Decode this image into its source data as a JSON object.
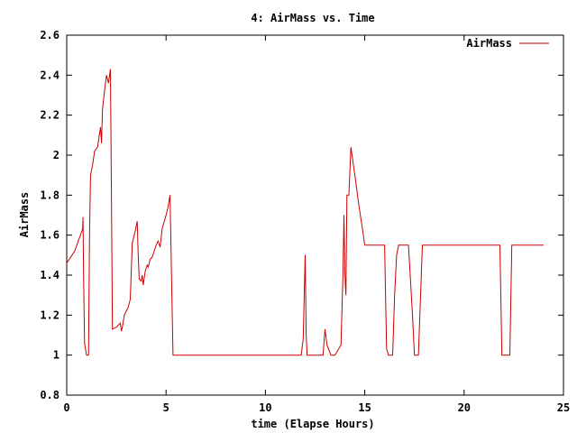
{
  "chart_data": {
    "type": "line",
    "title": "4: AirMass vs. Time",
    "xlabel": "time (Elapse Hours)",
    "ylabel": "AirMass",
    "xlim": [
      0,
      25
    ],
    "ylim": [
      0.8,
      2.6
    ],
    "x_ticks": [
      0,
      5,
      10,
      15,
      20,
      25
    ],
    "y_ticks": [
      0.8,
      1,
      1.2,
      1.4,
      1.6,
      1.8,
      2,
      2.2,
      2.4,
      2.6
    ],
    "x_tick_labels": [
      "0",
      "5",
      "10",
      "15",
      "20",
      "25"
    ],
    "y_tick_labels": [
      "0.8",
      "1",
      "1.2",
      "1.4",
      "1.6",
      "1.8",
      "2",
      "2.2",
      "2.4",
      "2.6"
    ],
    "grid": false,
    "legend": {
      "position": "top-right",
      "entries": [
        "AirMass"
      ]
    },
    "series": [
      {
        "name": "AirMass",
        "color": "#cc0000",
        "points": [
          [
            0.0,
            1.46
          ],
          [
            0.4,
            1.52
          ],
          [
            0.8,
            1.63
          ],
          [
            0.82,
            1.69
          ],
          [
            0.85,
            1.4
          ],
          [
            0.9,
            1.06
          ],
          [
            1.0,
            1.0
          ],
          [
            1.05,
            1.0
          ],
          [
            1.1,
            1.0
          ],
          [
            1.15,
            1.6
          ],
          [
            1.2,
            1.9
          ],
          [
            1.3,
            1.95
          ],
          [
            1.4,
            2.02
          ],
          [
            1.55,
            2.04
          ],
          [
            1.7,
            2.14
          ],
          [
            1.75,
            2.06
          ],
          [
            1.8,
            2.23
          ],
          [
            1.9,
            2.32
          ],
          [
            2.0,
            2.4
          ],
          [
            2.1,
            2.36
          ],
          [
            2.2,
            2.43
          ],
          [
            2.25,
            1.8
          ],
          [
            2.3,
            1.13
          ],
          [
            2.5,
            1.14
          ],
          [
            2.6,
            1.15
          ],
          [
            2.7,
            1.16
          ],
          [
            2.75,
            1.12
          ],
          [
            2.8,
            1.14
          ],
          [
            2.9,
            1.2
          ],
          [
            3.0,
            1.22
          ],
          [
            3.1,
            1.24
          ],
          [
            3.2,
            1.28
          ],
          [
            3.3,
            1.56
          ],
          [
            3.45,
            1.62
          ],
          [
            3.55,
            1.67
          ],
          [
            3.6,
            1.5
          ],
          [
            3.65,
            1.38
          ],
          [
            3.75,
            1.37
          ],
          [
            3.8,
            1.4
          ],
          [
            3.85,
            1.35
          ],
          [
            3.95,
            1.42
          ],
          [
            4.05,
            1.45
          ],
          [
            4.1,
            1.44
          ],
          [
            4.2,
            1.48
          ],
          [
            4.3,
            1.49
          ],
          [
            4.4,
            1.52
          ],
          [
            4.5,
            1.55
          ],
          [
            4.6,
            1.57
          ],
          [
            4.7,
            1.54
          ],
          [
            4.8,
            1.63
          ],
          [
            5.0,
            1.7
          ],
          [
            5.1,
            1.74
          ],
          [
            5.2,
            1.8
          ],
          [
            5.35,
            1.0
          ],
          [
            6.0,
            1.0
          ],
          [
            8.0,
            1.0
          ],
          [
            10.0,
            1.0
          ],
          [
            11.8,
            1.0
          ],
          [
            11.9,
            1.08
          ],
          [
            12.0,
            1.5
          ],
          [
            12.05,
            1.1
          ],
          [
            12.1,
            1.0
          ],
          [
            12.3,
            1.0
          ],
          [
            12.9,
            1.0
          ],
          [
            13.0,
            1.13
          ],
          [
            13.1,
            1.05
          ],
          [
            13.3,
            1.0
          ],
          [
            13.5,
            1.0
          ],
          [
            13.8,
            1.05
          ],
          [
            13.9,
            1.4
          ],
          [
            13.95,
            1.7
          ],
          [
            14.0,
            1.4
          ],
          [
            14.05,
            1.3
          ],
          [
            14.1,
            1.8
          ],
          [
            14.2,
            1.8
          ],
          [
            14.3,
            2.04
          ],
          [
            14.5,
            1.9
          ],
          [
            14.7,
            1.75
          ],
          [
            14.9,
            1.62
          ],
          [
            15.0,
            1.55
          ],
          [
            16.0,
            1.55
          ],
          [
            16.1,
            1.03
          ],
          [
            16.2,
            1.0
          ],
          [
            16.4,
            1.0
          ],
          [
            16.5,
            1.3
          ],
          [
            16.6,
            1.5
          ],
          [
            16.7,
            1.55
          ],
          [
            17.2,
            1.55
          ],
          [
            17.4,
            1.2
          ],
          [
            17.5,
            1.0
          ],
          [
            17.7,
            1.0
          ],
          [
            17.9,
            1.55
          ],
          [
            18.0,
            1.55
          ],
          [
            20.0,
            1.55
          ],
          [
            21.8,
            1.55
          ],
          [
            21.9,
            1.0
          ],
          [
            22.1,
            1.0
          ],
          [
            22.3,
            1.0
          ],
          [
            22.4,
            1.55
          ],
          [
            23.0,
            1.55
          ],
          [
            24.0,
            1.55
          ]
        ]
      }
    ]
  }
}
